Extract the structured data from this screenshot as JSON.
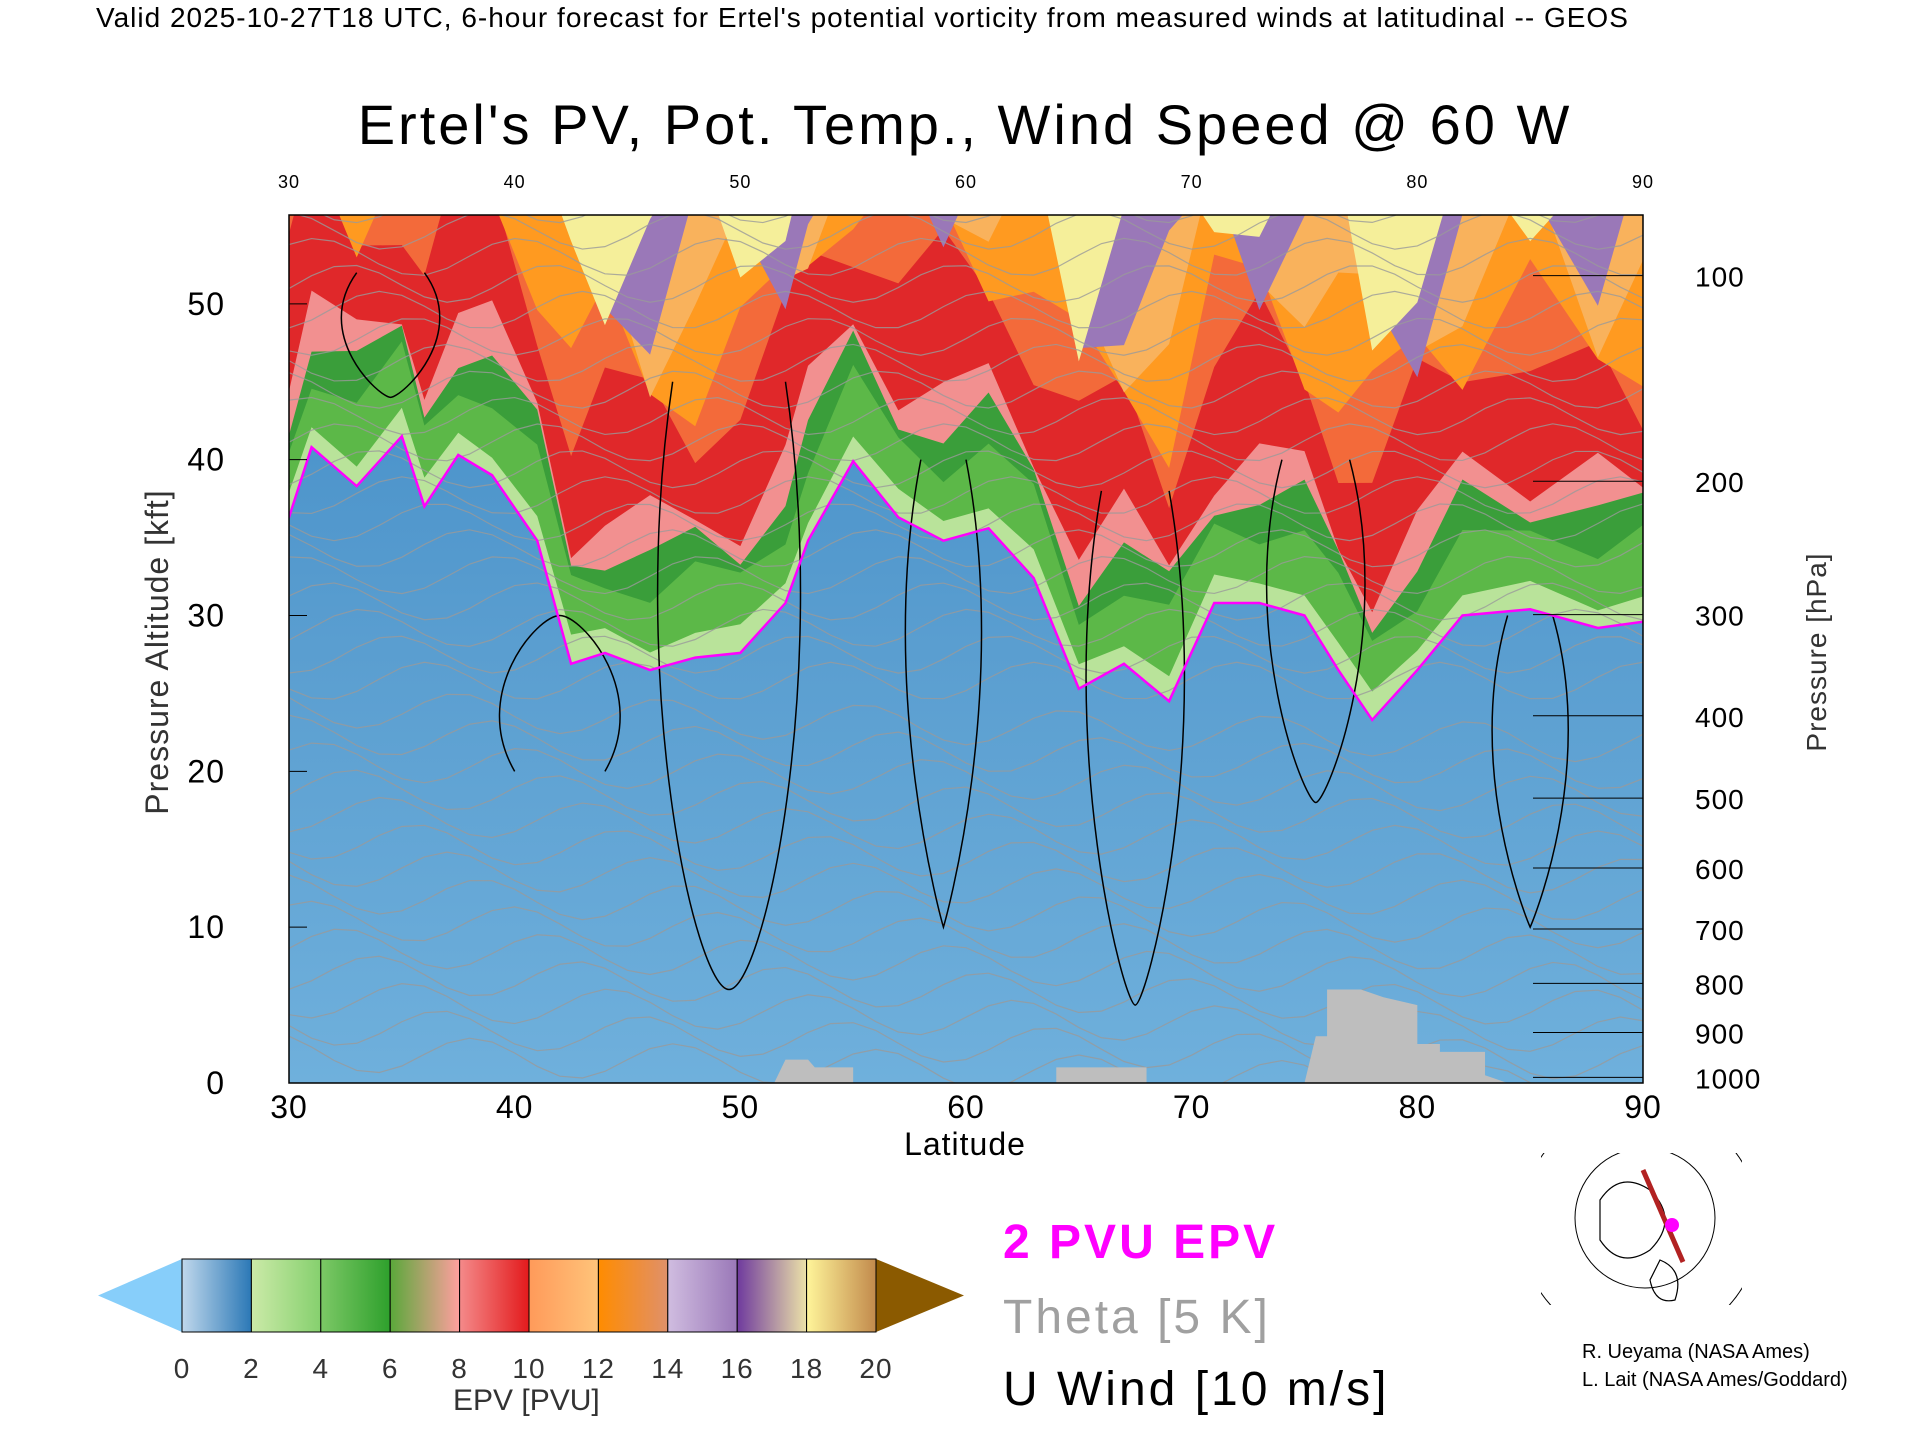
{
  "header": "Valid 2025-10-27T18 UTC, 6-hour forecast for Ertel's potential vorticity from measured winds at latitudinal -- GEOS",
  "chart_data": {
    "type": "heatmap",
    "title": "Ertel's PV, Pot. Temp., Wind Speed @ 60 W",
    "xlabel": "Latitude",
    "ylabel": "Pressure Altitude [kft]",
    "y2label": "Pressure [hPa]",
    "xlim": [
      30,
      90
    ],
    "ylim": [
      0,
      55.7
    ],
    "x_ticks": [
      "30",
      "40",
      "50",
      "60",
      "70",
      "80",
      "90"
    ],
    "x_tick_values": [
      30,
      40,
      50,
      60,
      70,
      80,
      90
    ],
    "y_ticks": [
      "0",
      "10",
      "20",
      "30",
      "40",
      "50"
    ],
    "y_tick_values": [
      0,
      10,
      20,
      30,
      40,
      50
    ],
    "pressure_ticks": [
      "100",
      "200",
      "300",
      "400",
      "500",
      "600",
      "700",
      "800",
      "900",
      "1000"
    ],
    "pressure_values_hpa": [
      100,
      200,
      300,
      400,
      500,
      600,
      700,
      800,
      900,
      1000
    ],
    "pvu2_surface": {
      "lat": [
        30,
        31,
        33,
        35,
        36,
        37.5,
        39,
        41,
        42.5,
        44,
        46,
        48,
        50,
        52,
        53,
        55,
        57,
        59,
        61,
        63,
        65,
        67,
        69,
        71,
        73,
        75,
        76.5,
        78,
        80,
        82,
        85,
        88,
        90
      ],
      "kft": [
        36.3,
        40.8,
        38.3,
        41.5,
        37,
        40.3,
        39,
        34.8,
        26.9,
        27.6,
        26.5,
        27.3,
        27.6,
        30.8,
        34.8,
        39.9,
        36.3,
        34.8,
        35.6,
        32.4,
        25.3,
        26.9,
        24.5,
        30.8,
        30.8,
        30,
        26.5,
        23.3,
        26.5,
        30,
        30.4,
        29.2,
        29.6
      ]
    },
    "terrain": {
      "lat": [
        50.5,
        51.5,
        52,
        53,
        53.3,
        55,
        55,
        64,
        64,
        68,
        68,
        75,
        75.5,
        76,
        76,
        77.5,
        78.5,
        80,
        80,
        81,
        81,
        83,
        83,
        84
      ],
      "kft": [
        0,
        0,
        1.5,
        1.5,
        1,
        1,
        0,
        0,
        1,
        1,
        0,
        0,
        3,
        3,
        6,
        6,
        5.5,
        5,
        2.5,
        2.5,
        2,
        2,
        0.5,
        0
      ]
    },
    "colorbar": {
      "label": "EPV [PVU]",
      "ticks": [
        "0",
        "2",
        "4",
        "6",
        "8",
        "10",
        "12",
        "14",
        "16",
        "18",
        "20"
      ],
      "range": [
        0,
        20
      ],
      "under_color": "#87cefa",
      "over_color": "#8b5a00",
      "segments": [
        [
          "#c0d8ec",
          "#2b78b6"
        ],
        [
          "#cbeaa8",
          "#86d06e"
        ],
        [
          "#7cc866",
          "#2ea02c"
        ],
        [
          "#5aa83a",
          "#ff9f9f"
        ],
        [
          "#f48a8a",
          "#e31a1c"
        ],
        [
          "#ff9a5a",
          "#ffc47a"
        ],
        [
          "#ff8c00",
          "#e0906a"
        ],
        [
          "#d0bde0",
          "#9a78b8"
        ],
        [
          "#6f3a9e",
          "#ece2a8"
        ],
        [
          "#fff59a",
          "#c28a4c"
        ]
      ]
    },
    "legend": [
      "2 PVU EPV",
      "Theta [5 K]",
      "U Wind [10 m/s]"
    ],
    "legend_colors": [
      "#ff00ff",
      "#a0a0a0",
      "#000000"
    ],
    "credits": [
      "R. Ueyama (NASA Ames)",
      "L. Lait (NASA Ames/Goddard)"
    ]
  }
}
